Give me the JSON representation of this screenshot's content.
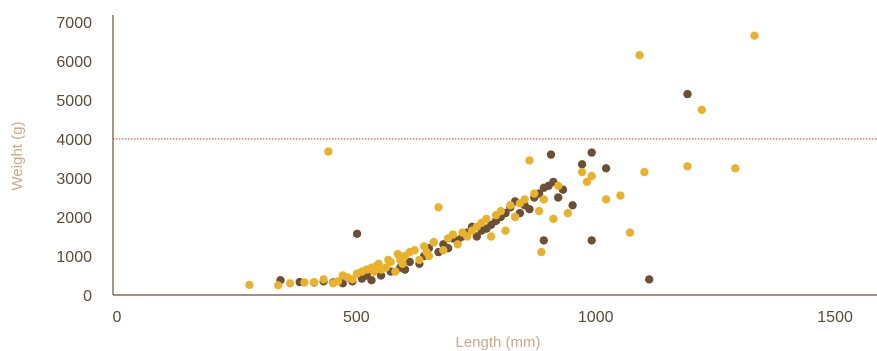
{
  "chart_data": {
    "type": "scatter",
    "xlabel": "Length (mm)",
    "ylabel": "Weight (g)",
    "xlim": [
      0,
      1550
    ],
    "ylim": [
      0,
      7000
    ],
    "x_ticks": [
      0,
      500,
      1000,
      1500
    ],
    "y_ticks": [
      0,
      1000,
      2000,
      3000,
      4000,
      5000,
      6000,
      7000
    ],
    "grid": false,
    "legend": "none",
    "reference_line": {
      "y": 4000,
      "color": "#c0392b",
      "style": "dotted"
    },
    "colors": {
      "dark": "#6b4f36",
      "gold": "#e8b22c",
      "axis": "#6b4f36"
    },
    "series": [
      {
        "color": "#6b4f36",
        "points": [
          [
            350,
            380
          ],
          [
            390,
            330
          ],
          [
            420,
            320
          ],
          [
            440,
            350
          ],
          [
            460,
            320
          ],
          [
            480,
            300
          ],
          [
            500,
            350
          ],
          [
            510,
            1570
          ],
          [
            520,
            420
          ],
          [
            530,
            500
          ],
          [
            540,
            380
          ],
          [
            560,
            500
          ],
          [
            580,
            600
          ],
          [
            600,
            700
          ],
          [
            610,
            650
          ],
          [
            620,
            850
          ],
          [
            640,
            800
          ],
          [
            650,
            1000
          ],
          [
            660,
            1200
          ],
          [
            670,
            1350
          ],
          [
            680,
            1100
          ],
          [
            690,
            1300
          ],
          [
            700,
            1200
          ],
          [
            710,
            1450
          ],
          [
            720,
            1400
          ],
          [
            730,
            1500
          ],
          [
            740,
            1600
          ],
          [
            750,
            1750
          ],
          [
            760,
            1500
          ],
          [
            770,
            1650
          ],
          [
            780,
            1700
          ],
          [
            790,
            1800
          ],
          [
            800,
            1900
          ],
          [
            810,
            2000
          ],
          [
            820,
            2100
          ],
          [
            830,
            2250
          ],
          [
            840,
            2400
          ],
          [
            850,
            2100
          ],
          [
            860,
            2300
          ],
          [
            870,
            2200
          ],
          [
            880,
            2500
          ],
          [
            890,
            2600
          ],
          [
            900,
            2750
          ],
          [
            910,
            2800
          ],
          [
            915,
            3600
          ],
          [
            920,
            2900
          ],
          [
            930,
            2500
          ],
          [
            940,
            2700
          ],
          [
            960,
            2300
          ],
          [
            980,
            3350
          ],
          [
            1000,
            3650
          ],
          [
            1030,
            3250
          ],
          [
            1120,
            400
          ],
          [
            1200,
            5150
          ],
          [
            1000,
            1400
          ],
          [
            900,
            1400
          ]
        ]
      },
      {
        "color": "#e8b22c",
        "points": [
          [
            285,
            260
          ],
          [
            345,
            250
          ],
          [
            370,
            300
          ],
          [
            400,
            320
          ],
          [
            420,
            330
          ],
          [
            440,
            400
          ],
          [
            450,
            3680
          ],
          [
            460,
            300
          ],
          [
            470,
            350
          ],
          [
            480,
            500
          ],
          [
            490,
            450
          ],
          [
            500,
            400
          ],
          [
            510,
            550
          ],
          [
            520,
            600
          ],
          [
            530,
            650
          ],
          [
            540,
            700
          ],
          [
            545,
            600
          ],
          [
            550,
            750
          ],
          [
            555,
            800
          ],
          [
            560,
            650
          ],
          [
            570,
            700
          ],
          [
            575,
            900
          ],
          [
            580,
            850
          ],
          [
            590,
            600
          ],
          [
            595,
            1050
          ],
          [
            600,
            900
          ],
          [
            605,
            800
          ],
          [
            610,
            1000
          ],
          [
            620,
            1100
          ],
          [
            630,
            1150
          ],
          [
            640,
            900
          ],
          [
            650,
            1250
          ],
          [
            655,
            1100
          ],
          [
            660,
            1000
          ],
          [
            670,
            1350
          ],
          [
            680,
            2250
          ],
          [
            690,
            1150
          ],
          [
            700,
            1450
          ],
          [
            710,
            1550
          ],
          [
            720,
            1300
          ],
          [
            730,
            1600
          ],
          [
            740,
            1500
          ],
          [
            750,
            1650
          ],
          [
            760,
            1750
          ],
          [
            770,
            1850
          ],
          [
            780,
            1950
          ],
          [
            790,
            1500
          ],
          [
            800,
            2050
          ],
          [
            810,
            2150
          ],
          [
            820,
            1650
          ],
          [
            830,
            2300
          ],
          [
            840,
            2000
          ],
          [
            850,
            2350
          ],
          [
            860,
            2450
          ],
          [
            870,
            3450
          ],
          [
            880,
            2600
          ],
          [
            890,
            2150
          ],
          [
            895,
            1100
          ],
          [
            900,
            2450
          ],
          [
            920,
            1950
          ],
          [
            930,
            2800
          ],
          [
            950,
            2100
          ],
          [
            980,
            3150
          ],
          [
            990,
            2900
          ],
          [
            1000,
            3050
          ],
          [
            1030,
            2450
          ],
          [
            1060,
            2550
          ],
          [
            1080,
            1600
          ],
          [
            1100,
            6150
          ],
          [
            1110,
            3150
          ],
          [
            1200,
            3300
          ],
          [
            1230,
            4750
          ],
          [
            1300,
            3250
          ],
          [
            1340,
            6650
          ]
        ]
      }
    ]
  }
}
